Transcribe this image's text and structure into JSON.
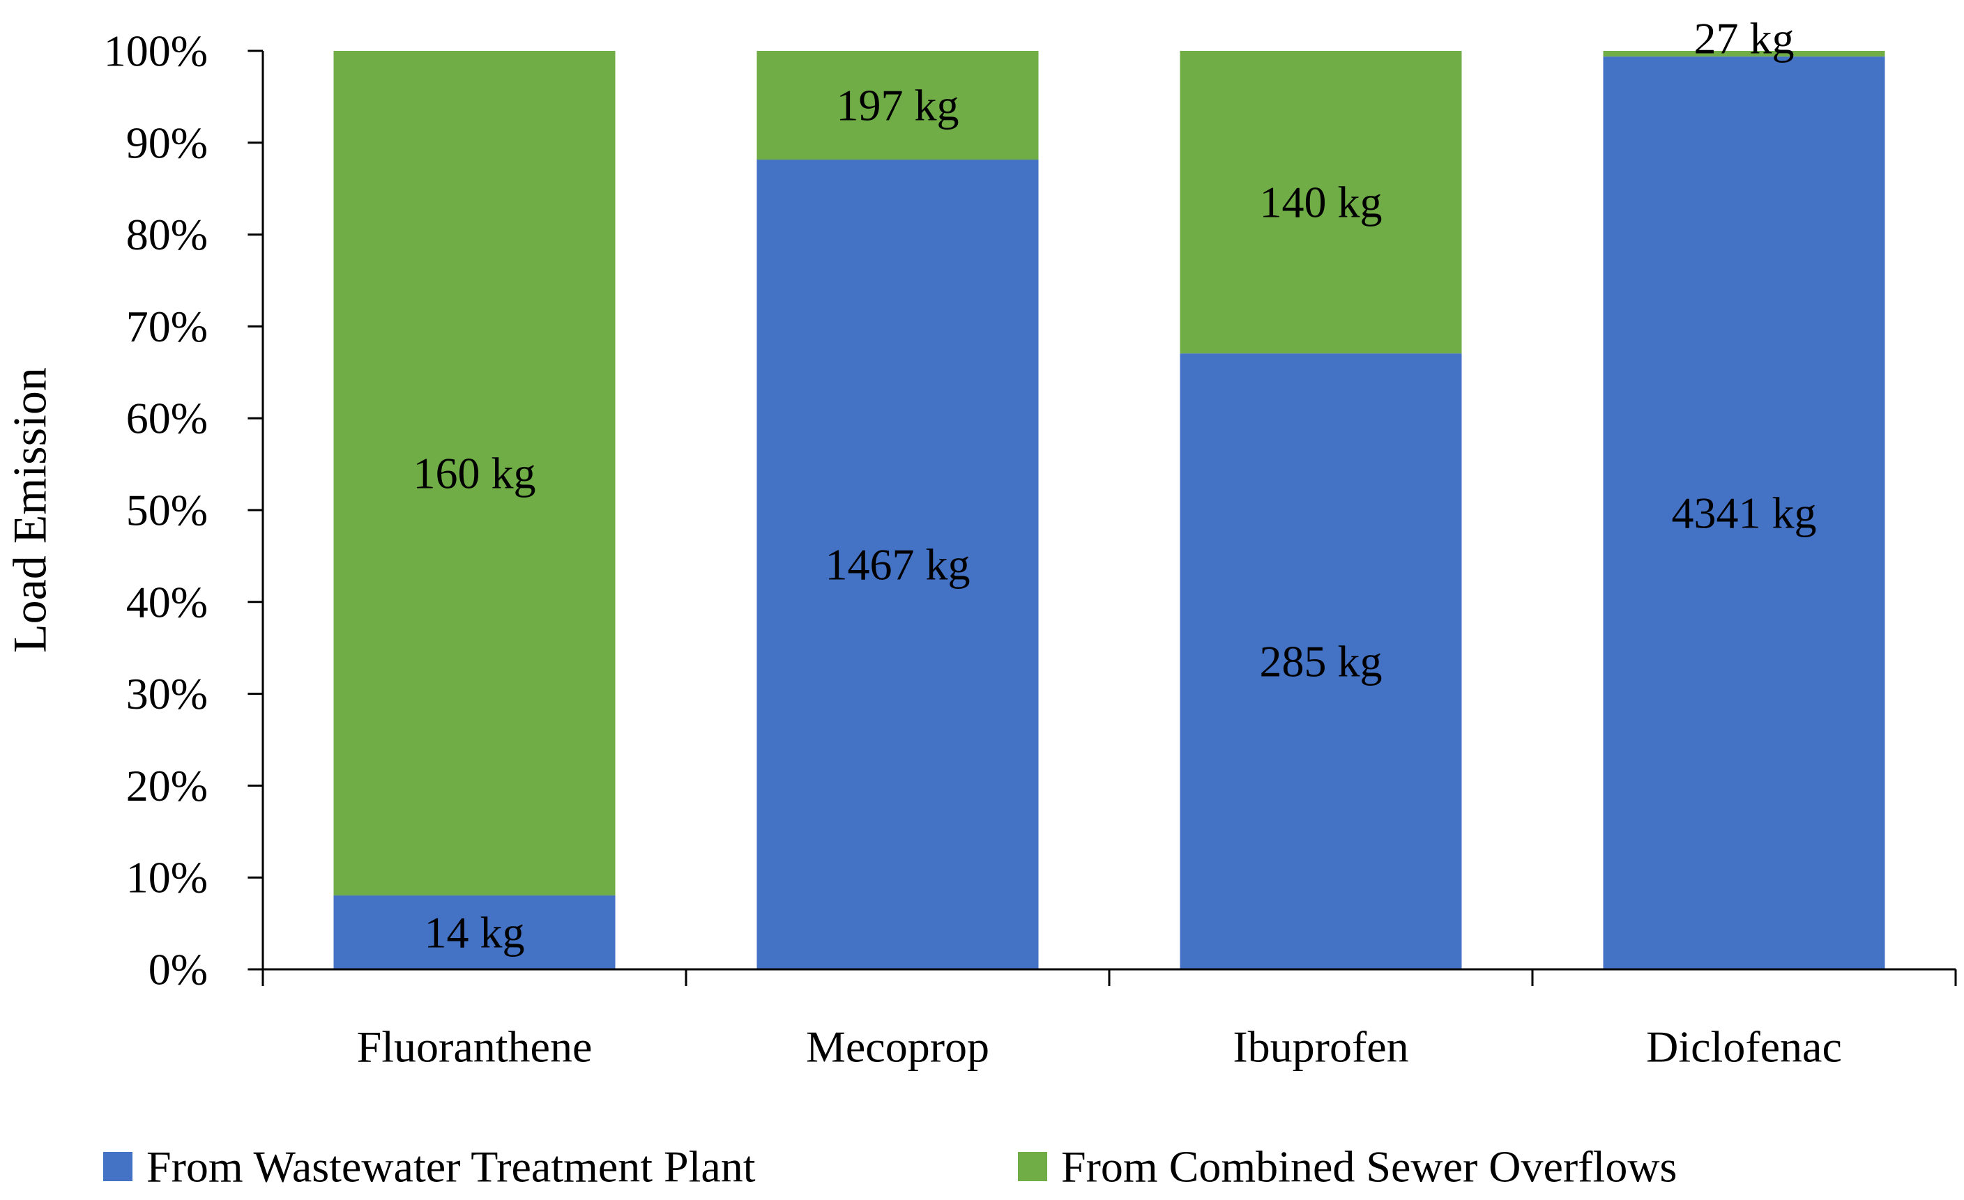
{
  "chart_data": {
    "type": "bar",
    "stacked": true,
    "normalized": true,
    "title": "",
    "xlabel": "",
    "ylabel": "Load Emission",
    "ylim": [
      0,
      100
    ],
    "y_ticks": [
      0,
      10,
      20,
      30,
      40,
      50,
      60,
      70,
      80,
      90,
      100
    ],
    "y_tick_labels": [
      "0%",
      "10%",
      "20%",
      "30%",
      "40%",
      "50%",
      "60%",
      "70%",
      "80%",
      "90%",
      "100%"
    ],
    "categories": [
      "Fluoranthene",
      "Mecoprop",
      "Ibuprofen",
      "Diclofenac"
    ],
    "series": [
      {
        "name": "From Wastewater Treatment Plant",
        "color": "#4472C4",
        "values_kg": [
          14,
          1467,
          285,
          4341
        ],
        "labels": [
          "14 kg",
          "1467 kg",
          "285 kg",
          "4341 kg"
        ]
      },
      {
        "name": "From Combined Sewer Overflows",
        "color": "#70AD47",
        "values_kg": [
          160,
          197,
          140,
          27
        ],
        "labels": [
          "160 kg",
          "197 kg",
          "140 kg",
          "27 kg"
        ]
      }
    ],
    "legend_position": "bottom",
    "grid": false
  }
}
